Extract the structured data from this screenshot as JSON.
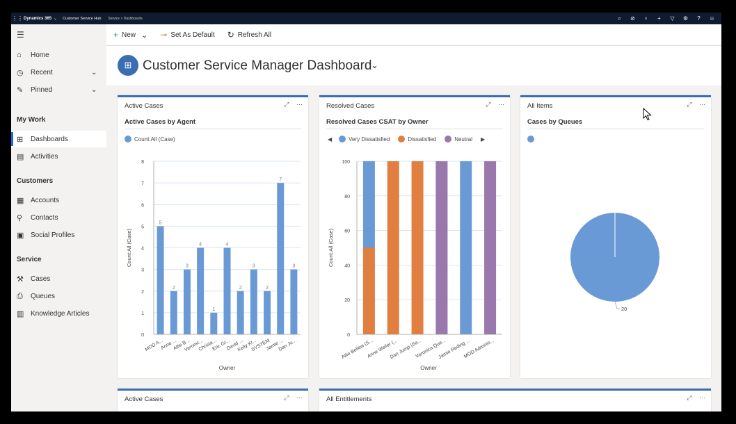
{
  "topbar": {
    "brand": "Dynamics 365",
    "app": "Customer Service Hub",
    "breadcrumb": "Service  >  Dashboards",
    "icons": [
      "search-icon",
      "lightbulb-check-icon",
      "lightbulb-icon",
      "plus-icon",
      "filter-icon",
      "gear-icon",
      "help-icon",
      "user-icon"
    ]
  },
  "sidebar": {
    "items": [
      {
        "label": "Home",
        "icon": "home-icon"
      },
      {
        "label": "Recent",
        "icon": "clock-icon"
      },
      {
        "label": "Pinned",
        "icon": "pin-icon"
      }
    ],
    "groups": [
      {
        "title": "My Work",
        "items": [
          {
            "label": "Dashboards"
          },
          {
            "label": "Activities"
          }
        ]
      },
      {
        "title": "Customers",
        "items": [
          {
            "label": "Accounts"
          },
          {
            "label": "Contacts"
          },
          {
            "label": "Social Profiles"
          }
        ]
      },
      {
        "title": "Service",
        "items": [
          {
            "label": "Cases"
          },
          {
            "label": "Queues"
          },
          {
            "label": "Knowledge Articles"
          }
        ]
      }
    ]
  },
  "commandbar": {
    "new_label": "New",
    "set_default_label": "Set As Default",
    "refresh_label": "Refresh All"
  },
  "dashboard": {
    "title": "Customer Service Manager Dashboard"
  },
  "cards": {
    "active_cases": {
      "title": "Active Cases",
      "subtitle": "Active Cases by Agent"
    },
    "resolved_cases": {
      "title": "Resolved Cases",
      "subtitle": "Resolved Cases CSAT by Owner"
    },
    "all_items": {
      "title": "All Items",
      "subtitle": "Cases by Queues"
    },
    "active_cases_2": {
      "title": "Active Cases"
    },
    "all_entitlements": {
      "title": "All Entitlements"
    }
  },
  "colors": {
    "blue": "#6a9ad6",
    "orange": "#e07f3f",
    "purple": "#9a78ad",
    "accent": "#3b6db3"
  },
  "chart_data": [
    {
      "type": "bar",
      "title": "Active Cases by Agent",
      "categories": [
        "MOD A...",
        "Anne ...",
        "Allie B...",
        "Veronic...",
        "Christa...",
        "Eric Gr...",
        "David ...",
        "Kelly Kr...",
        "SYSTEM",
        "Jamie ...",
        "Dan Ju..."
      ],
      "series": [
        {
          "name": "Count:All (Case)",
          "values": [
            5,
            2,
            3,
            4,
            1,
            4,
            2,
            3,
            2,
            7,
            3
          ]
        }
      ],
      "xlabel": "Owner",
      "ylabel": "Count:All (Case)",
      "ylim": [
        0,
        8
      ],
      "yticks": [
        0,
        1,
        2,
        3,
        4,
        5,
        6,
        7,
        8
      ],
      "grid": true,
      "legend": "top-left"
    },
    {
      "type": "bar",
      "stacked": true,
      "title": "Resolved Cases CSAT by Owner",
      "categories": [
        "Allie Bellew (S...",
        "Anne Weiler (...",
        "Dan Jump (Sa...",
        "Veronica Que...",
        "Jamie Reding ...",
        "MOD Adminis..."
      ],
      "series": [
        {
          "name": "Very Dissatisfied",
          "values": [
            50,
            0,
            0,
            0,
            100,
            0
          ]
        },
        {
          "name": "Dissatisfied",
          "values": [
            50,
            100,
            100,
            0,
            0,
            0
          ]
        },
        {
          "name": "Neutral",
          "values": [
            0,
            0,
            0,
            100,
            0,
            100
          ]
        }
      ],
      "xlabel": "Owner",
      "ylabel": "Count:All (Case)",
      "ylim": [
        0,
        100
      ],
      "yticks": [
        0,
        20,
        40,
        60,
        80,
        100
      ],
      "grid": true,
      "legend": "top-left"
    },
    {
      "type": "pie",
      "title": "Cases by Queues",
      "slices": [
        {
          "label": "20",
          "value": 20
        }
      ],
      "legend": "top-left"
    }
  ]
}
